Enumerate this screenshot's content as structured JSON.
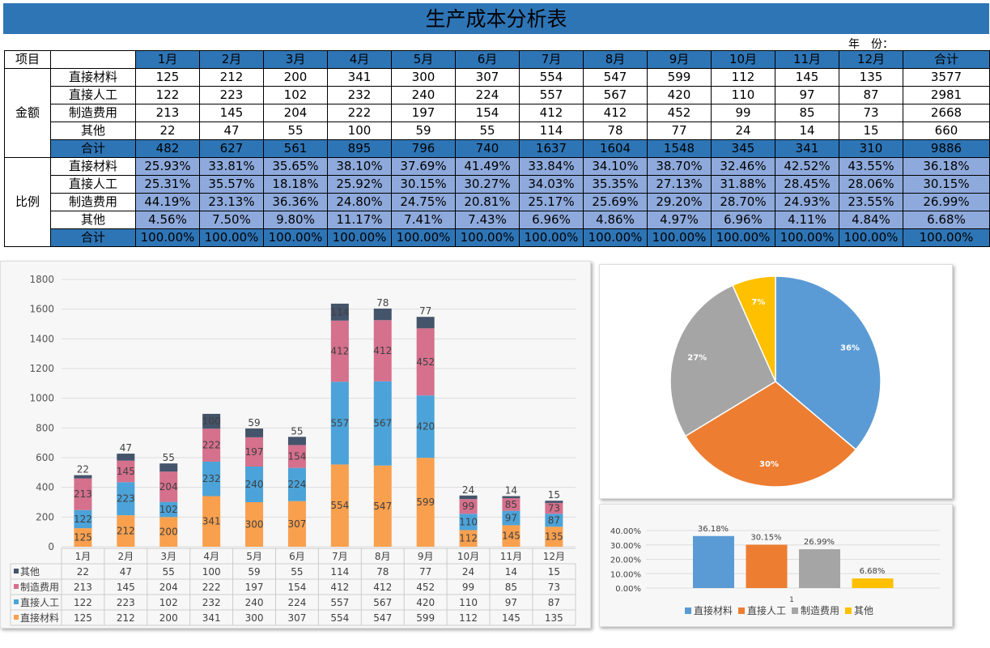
{
  "title": "生产成本分析表",
  "year_label": "年　份：",
  "table": {
    "header_item": "项目",
    "months": [
      "1月",
      "2月",
      "3月",
      "4月",
      "5月",
      "6月",
      "7月",
      "8月",
      "9月",
      "10月",
      "11月",
      "12月"
    ],
    "total_label": "合计",
    "amount_group": "金额",
    "ratio_group": "比例",
    "amount_rows": [
      {
        "label": "直接材料",
        "values": [
          "125",
          "212",
          "200",
          "341",
          "300",
          "307",
          "554",
          "547",
          "599",
          "112",
          "145",
          "135"
        ],
        "total": "3577"
      },
      {
        "label": "直接人工",
        "values": [
          "122",
          "223",
          "102",
          "232",
          "240",
          "224",
          "557",
          "567",
          "420",
          "110",
          "97",
          "87"
        ],
        "total": "2981"
      },
      {
        "label": "制造费用",
        "values": [
          "213",
          "145",
          "204",
          "222",
          "197",
          "154",
          "412",
          "412",
          "452",
          "99",
          "85",
          "73"
        ],
        "total": "2668"
      },
      {
        "label": "其他",
        "values": [
          "22",
          "47",
          "55",
          "100",
          "59",
          "55",
          "114",
          "78",
          "77",
          "24",
          "14",
          "15"
        ],
        "total": "660"
      },
      {
        "label": "合计",
        "values": [
          "482",
          "627",
          "561",
          "895",
          "796",
          "740",
          "1637",
          "1604",
          "1548",
          "345",
          "341",
          "310"
        ],
        "total": "9886"
      }
    ],
    "ratio_rows": [
      {
        "label": "直接材料",
        "values": [
          "25.93%",
          "33.81%",
          "35.65%",
          "38.10%",
          "37.69%",
          "41.49%",
          "33.84%",
          "34.10%",
          "38.70%",
          "32.46%",
          "42.52%",
          "43.55%"
        ],
        "total": "36.18%"
      },
      {
        "label": "直接人工",
        "values": [
          "25.31%",
          "35.57%",
          "18.18%",
          "25.92%",
          "30.15%",
          "30.27%",
          "34.03%",
          "35.35%",
          "27.13%",
          "31.88%",
          "28.45%",
          "28.06%"
        ],
        "total": "30.15%"
      },
      {
        "label": "制造费用",
        "values": [
          "44.19%",
          "23.13%",
          "36.36%",
          "24.80%",
          "24.75%",
          "20.81%",
          "25.17%",
          "25.69%",
          "29.20%",
          "28.70%",
          "24.93%",
          "23.55%"
        ],
        "total": "26.99%"
      },
      {
        "label": "其他",
        "values": [
          "4.56%",
          "7.50%",
          "9.80%",
          "11.17%",
          "7.41%",
          "7.43%",
          "6.96%",
          "4.86%",
          "4.97%",
          "6.96%",
          "4.11%",
          "4.84%"
        ],
        "total": "6.68%"
      },
      {
        "label": "合计",
        "values": [
          "100.00%",
          "100.00%",
          "100.00%",
          "100.00%",
          "100.00%",
          "100.00%",
          "100.00%",
          "100.00%",
          "100.00%",
          "100.00%",
          "100.00%",
          "100.00%"
        ],
        "total": "100.00%"
      }
    ]
  },
  "colors": {
    "header_blue": "#2E75B6",
    "light_blue": "#8EA9DB"
  },
  "chart_data": [
    {
      "type": "bar",
      "stacked": true,
      "categories": [
        "1月",
        "2月",
        "3月",
        "4月",
        "5月",
        "6月",
        "7月",
        "8月",
        "9月",
        "10月",
        "11月",
        "12月"
      ],
      "series": [
        {
          "name": "直接材料",
          "color": "#F9A04E",
          "values": [
            125,
            212,
            200,
            341,
            300,
            307,
            554,
            547,
            599,
            112,
            145,
            135
          ]
        },
        {
          "name": "直接人工",
          "color": "#4BA3D9",
          "values": [
            122,
            223,
            102,
            232,
            240,
            224,
            557,
            567,
            420,
            110,
            97,
            87
          ]
        },
        {
          "name": "制造费用",
          "color": "#D5708D",
          "values": [
            213,
            145,
            204,
            222,
            197,
            154,
            412,
            412,
            452,
            99,
            85,
            73
          ]
        },
        {
          "name": "其他",
          "color": "#44546A",
          "values": [
            22,
            47,
            55,
            100,
            59,
            55,
            114,
            78,
            77,
            24,
            14,
            15
          ]
        }
      ],
      "ylim": [
        0,
        1800
      ],
      "yticks": [
        0,
        200,
        400,
        600,
        800,
        1000,
        1200,
        1400,
        1600,
        1800
      ],
      "grid": true,
      "data_table": true
    },
    {
      "type": "pie",
      "categories": [
        "直接材料",
        "直接人工",
        "制造费用",
        "其他"
      ],
      "values": [
        36.18,
        30.15,
        26.99,
        6.68
      ],
      "labels": [
        "36%",
        "30%",
        "27%",
        "7%"
      ],
      "colors": [
        "#5B9BD5",
        "#ED7D31",
        "#A5A5A5",
        "#FFC000"
      ]
    },
    {
      "type": "bar",
      "categories": [
        "1"
      ],
      "series": [
        {
          "name": "直接材料",
          "color": "#5B9BD5",
          "values": [
            36.18
          ],
          "label": "36.18%"
        },
        {
          "name": "直接人工",
          "color": "#ED7D31",
          "values": [
            30.15
          ],
          "label": "30.15%"
        },
        {
          "name": "制造费用",
          "color": "#A5A5A5",
          "values": [
            26.99
          ],
          "label": "26.99%"
        },
        {
          "name": "其他",
          "color": "#FFC000",
          "values": [
            6.68
          ],
          "label": "6.68%"
        }
      ],
      "ylim": [
        0,
        40
      ],
      "yticks": [
        "0.00%",
        "10.00%",
        "20.00%",
        "30.00%",
        "40.00%"
      ],
      "legend": "bottom",
      "grid": true
    }
  ]
}
